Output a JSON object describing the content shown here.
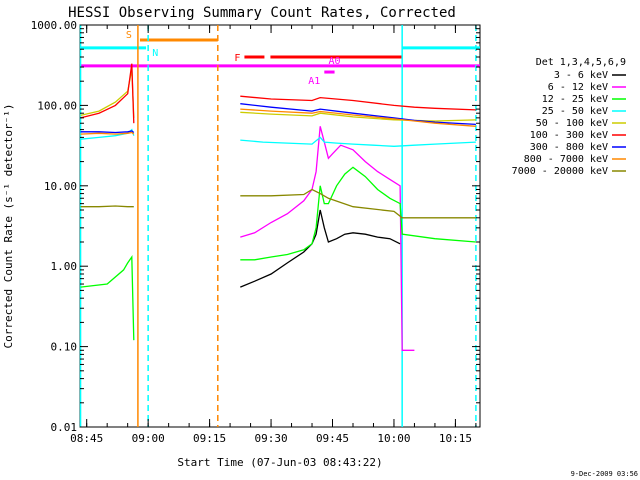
{
  "chart_data": {
    "type": "line",
    "title": "HESSI Observing Summary Count Rates, Corrected",
    "xlabel": "Start Time (07-Jun-03 08:43:22)",
    "ylabel": "Corrected Count Rate (s⁻¹ detector⁻¹)",
    "yscale": "log",
    "xlim": [
      "08:43:22",
      "10:21:00"
    ],
    "ylim": [
      0.01,
      1000
    ],
    "x_ticks": [
      "08:45",
      "09:00",
      "09:15",
      "09:30",
      "09:45",
      "10:00",
      "10:15"
    ],
    "y_ticks": [
      "0.01",
      "0.10",
      "1.00",
      "10.00",
      "100.00",
      "1000.00"
    ],
    "grid": false,
    "legend_title": "Det 1,3,4,5,6,9",
    "legend_position": "right",
    "series": [
      {
        "name": "3 - 6 keV",
        "color": "#000000",
        "x": [
          "09:22:30",
          "09:26",
          "09:30",
          "09:34",
          "09:38",
          "09:40",
          "09:41",
          "09:42",
          "09:43",
          "09:44",
          "09:46",
          "09:48",
          "09:50",
          "09:53",
          "09:56",
          "09:59",
          "10:01:30"
        ],
        "y": [
          0.55,
          0.65,
          0.8,
          1.1,
          1.5,
          1.9,
          2.5,
          5.0,
          3.0,
          2.0,
          2.2,
          2.5,
          2.6,
          2.5,
          2.3,
          2.2,
          1.9
        ]
      },
      {
        "name": "6 - 12 keV",
        "color": "#ff00ff",
        "x": [
          "09:22:30",
          "09:26",
          "09:30",
          "09:34",
          "09:38",
          "09:40",
          "09:41",
          "09:42",
          "09:43",
          "09:44",
          "09:45",
          "09:47",
          "09:50",
          "09:53",
          "09:56",
          "09:59",
          "10:01:30",
          "10:02",
          "10:03",
          "10:05"
        ],
        "y": [
          2.3,
          2.6,
          3.5,
          4.5,
          6.5,
          9,
          15,
          55,
          35,
          22,
          25,
          32,
          28,
          20,
          15,
          12,
          10,
          0.09,
          0.09,
          0.09
        ]
      },
      {
        "name": "12 - 25 keV",
        "color": "#00ff00",
        "x": [
          "08:43:30",
          "08:50",
          "08:54",
          "08:55",
          "08:56",
          "08:56:30",
          "09:22:30",
          "09:26",
          "09:30",
          "09:34",
          "09:38",
          "09:40",
          "09:41",
          "09:42",
          "09:43",
          "09:44",
          "09:46",
          "09:48",
          "09:50",
          "09:53",
          "09:56",
          "09:59",
          "10:01:30",
          "10:02",
          "10:10",
          "10:20"
        ],
        "y": [
          0.55,
          0.6,
          0.9,
          1.1,
          1.3,
          0.12,
          1.2,
          1.2,
          1.3,
          1.4,
          1.6,
          1.9,
          3,
          10,
          6,
          6,
          10,
          14,
          17,
          13,
          9,
          7,
          6,
          2.5,
          2.2,
          2.0
        ]
      },
      {
        "name": "25 - 50 keV",
        "color": "#00ffff",
        "x": [
          "08:43:30",
          "08:48",
          "08:52",
          "08:55",
          "08:56",
          "08:56:30",
          "09:22:30",
          "09:28",
          "09:34",
          "09:40",
          "09:42",
          "09:43",
          "09:46",
          "09:50",
          "09:55",
          "10:00",
          "10:05",
          "10:10",
          "10:20"
        ],
        "y": [
          38,
          40,
          42,
          45,
          50,
          42,
          37,
          35,
          34,
          33,
          40,
          35,
          34,
          33,
          32,
          31,
          32,
          33,
          35
        ]
      },
      {
        "name": "50 - 100 keV",
        "color": "#cccc00",
        "x": [
          "08:43:30",
          "08:48",
          "08:52",
          "08:55",
          "08:56",
          "08:56:30",
          "09:22:30",
          "09:30",
          "09:40",
          "09:42",
          "09:50",
          "10:00",
          "10:05",
          "10:10",
          "10:20"
        ],
        "y": [
          75,
          85,
          110,
          150,
          280,
          70,
          82,
          78,
          74,
          80,
          72,
          66,
          65,
          64,
          66
        ]
      },
      {
        "name": "100 - 300 keV",
        "color": "#ff0000",
        "x": [
          "08:43:30",
          "08:48",
          "08:52",
          "08:55",
          "08:56",
          "08:56:30",
          "09:22:30",
          "09:30",
          "09:40",
          "09:42",
          "09:50",
          "10:00",
          "10:05",
          "10:10",
          "10:20"
        ],
        "y": [
          70,
          80,
          100,
          140,
          330,
          60,
          130,
          120,
          115,
          125,
          115,
          100,
          95,
          92,
          88
        ]
      },
      {
        "name": "300 - 800 keV",
        "color": "#0000ff",
        "x": [
          "08:43:30",
          "08:48",
          "08:52",
          "08:55",
          "08:56",
          "08:56:30",
          "09:22:30",
          "09:30",
          "09:40",
          "09:42",
          "09:50",
          "10:00",
          "10:05",
          "10:10",
          "10:20"
        ],
        "y": [
          47,
          47,
          46,
          47,
          48,
          46,
          105,
          95,
          85,
          90,
          80,
          70,
          65,
          62,
          58
        ]
      },
      {
        "name": "800 - 7000 keV",
        "color": "#ff8800",
        "x": [
          "08:43:30",
          "08:48",
          "08:52",
          "08:55",
          "08:56",
          "08:56:30",
          "09:22:30",
          "09:30",
          "09:40",
          "09:42",
          "09:50",
          "10:00",
          "10:05",
          "10:10",
          "10:20"
        ],
        "y": [
          44,
          45,
          44,
          45,
          46,
          44,
          90,
          85,
          80,
          84,
          76,
          68,
          64,
          60,
          55
        ]
      },
      {
        "name": "7000 - 20000 keV",
        "color": "#888800",
        "x": [
          "08:43:30",
          "08:48",
          "08:52",
          "08:55",
          "08:56",
          "08:56:30",
          "09:22:30",
          "09:30",
          "09:38",
          "09:40",
          "09:42",
          "09:44",
          "09:50",
          "10:00",
          "10:02",
          "10:10",
          "10:20"
        ],
        "y": [
          5.5,
          5.5,
          5.6,
          5.5,
          5.5,
          5.5,
          7.5,
          7.5,
          7.8,
          9,
          8,
          7,
          5.5,
          4.8,
          4.0,
          4.0,
          4.0
        ]
      }
    ],
    "bars": [
      {
        "label": "S",
        "color": "#ff8800",
        "value": 650,
        "x_start": "08:58:00",
        "x_end": "09:17:00"
      },
      {
        "label": "N",
        "color": "#00ffff",
        "value": 520,
        "x_start": "08:43:22",
        "x_end": "08:59:30"
      },
      {
        "label": "N",
        "color": "#00ffff",
        "value": 520,
        "x_start": "10:02:00",
        "x_end": "10:21:00"
      },
      {
        "label": "F",
        "color": "#ff0000",
        "value": 400,
        "x_start": "09:23:30",
        "x_end": "10:02:00"
      },
      {
        "label": "A1",
        "color": "#ff00ff",
        "value": 260,
        "x_start": "09:43:00",
        "x_end": "09:45:30"
      },
      {
        "label": "A0",
        "color": "#ff00ff",
        "value": 310,
        "x_start": "08:43:22",
        "x_end": "10:21:00"
      }
    ],
    "vertical_lines": [
      {
        "x": "08:43:30",
        "color": "#00ffff",
        "style": "solid"
      },
      {
        "x": "08:57:30",
        "color": "#ff8800",
        "style": "solid"
      },
      {
        "x": "09:00:00",
        "color": "#00ffff",
        "style": "dashed"
      },
      {
        "x": "09:17:00",
        "color": "#ff8800",
        "style": "dashed"
      },
      {
        "x": "10:02:00",
        "color": "#00ffff",
        "style": "solid"
      },
      {
        "x": "10:20:00",
        "color": "#00ffff",
        "style": "dashed"
      }
    ],
    "stamp": "9-Dec-2009 03:56"
  }
}
